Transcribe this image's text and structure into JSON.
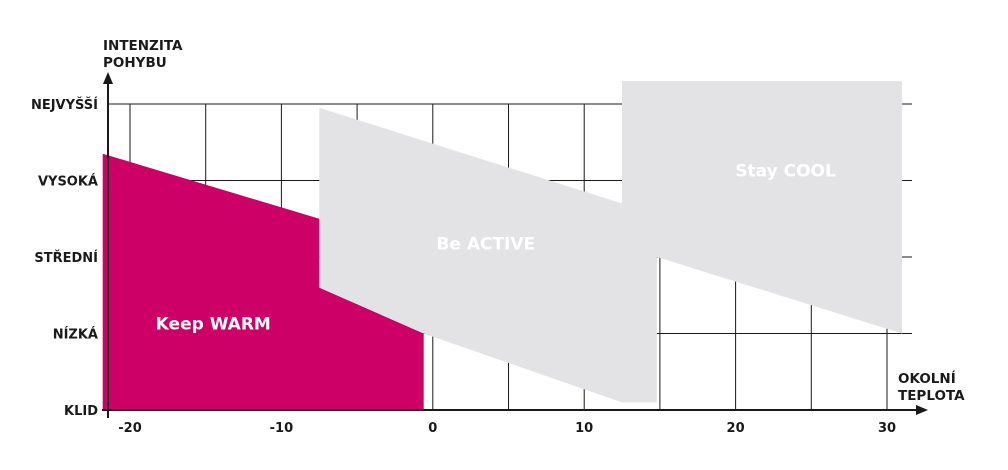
{
  "chart_data": {
    "type": "area",
    "title": "",
    "ylabel_lines": [
      "INTENZITA",
      "POHYBU"
    ],
    "xlabel_lines": [
      "OKOLNÍ",
      "TEPLOTA"
    ],
    "x_ticks": [
      -20,
      -10,
      0,
      10,
      20,
      30
    ],
    "y_categories": [
      "KLID",
      "NÍZKÁ",
      "STŘEDNÍ",
      "VYSOKÁ",
      "NEJVYŠŠÍ"
    ],
    "xlim": [
      -22,
      31
    ],
    "ylim": [
      0,
      4
    ],
    "grid": true,
    "regions": [
      {
        "name": "Keep WARM",
        "color": "#cc0066",
        "polygon": [
          [
            -21.8,
            0
          ],
          [
            -21.8,
            3.35
          ],
          [
            -7.5,
            2.5
          ],
          [
            -7.5,
            1.6
          ],
          [
            -0.6,
            1.0
          ],
          [
            -0.6,
            0
          ]
        ]
      },
      {
        "name": "Be ACTIVE",
        "color": "#e3e3e5",
        "polygon": [
          [
            -7.5,
            1.6
          ],
          [
            -7.5,
            3.95
          ],
          [
            12.5,
            2.7
          ],
          [
            12.5,
            0.1
          ],
          [
            -0.6,
            1.0
          ]
        ]
      },
      {
        "name": "Be ACTIVE",
        "color": "#e3e3e5",
        "polygon": [
          [
            -0.6,
            1.0
          ],
          [
            12.5,
            0.1
          ],
          [
            12.5,
            0
          ]
        ],
        "hidden": true
      },
      {
        "name": "Stay COOL",
        "color": "#e3e3e5",
        "polygon": [
          [
            12.5,
            2.7
          ],
          [
            12.5,
            4.3
          ],
          [
            31,
            4.3
          ],
          [
            31,
            1.0
          ],
          [
            14.8,
            2.0
          ],
          [
            14.8,
            0.1
          ],
          [
            12.5,
            0.1
          ]
        ]
      }
    ],
    "labels": [
      {
        "text": "Keep WARM",
        "x": -14.5,
        "y": 1.05
      },
      {
        "text": "Be ACTIVE",
        "x": 3.5,
        "y": 2.1
      },
      {
        "text": "Stay COOL",
        "x": 23.3,
        "y": 3.05
      }
    ]
  }
}
